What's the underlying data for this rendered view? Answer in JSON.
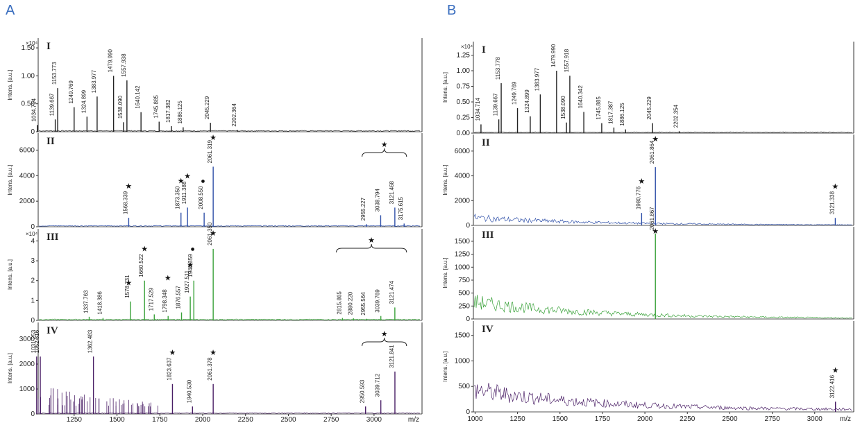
{
  "panel_labels": {
    "a": "A",
    "b": "B"
  },
  "colors": {
    "I": "#222222",
    "II": "#2e4fa8",
    "III": "#3aa23a",
    "IV": "#4a1f66",
    "letter": "#3a6ebf"
  },
  "chart_data": [
    {
      "panel": "A",
      "type": "line",
      "x_axis": {
        "ticks": [
          "1250",
          "1500",
          "1750",
          "2000",
          "2250",
          "2500",
          "2750",
          "3000"
        ],
        "unit_label": "m/z",
        "xlim": [
          1040,
          3280
        ]
      },
      "subplots": [
        {
          "label": "I",
          "ylabel": "Intens. [a.u.]",
          "multiplier": "×10⁴",
          "yticks": [
            "0",
            "0.50",
            "1.00",
            "1.50"
          ],
          "ylim": [
            0,
            1.6
          ],
          "color": "#222222",
          "peaks": [
            {
              "mz": 1034.714,
              "h": 0.12,
              "label": "1034.714"
            },
            {
              "mz": 1139.667,
              "h": 0.22,
              "label": "1139.667"
            },
            {
              "mz": 1153.773,
              "h": 0.78,
              "label": "1153.773"
            },
            {
              "mz": 1249.769,
              "h": 0.44,
              "label": "1249.769"
            },
            {
              "mz": 1324.899,
              "h": 0.27,
              "label": "1324.899"
            },
            {
              "mz": 1383.977,
              "h": 0.63,
              "label": "1383.977"
            },
            {
              "mz": 1479.99,
              "h": 1.0,
              "label": "1479.990"
            },
            {
              "mz": 1557.938,
              "h": 0.92,
              "label": "1557.938"
            },
            {
              "mz": 1538.09,
              "h": 0.17,
              "label": "1538.090"
            },
            {
              "mz": 1640.142,
              "h": 0.35,
              "label": "1640.142"
            },
            {
              "mz": 1745.885,
              "h": 0.18,
              "label": "1745.885"
            },
            {
              "mz": 1817.382,
              "h": 0.1,
              "label": "1817.382"
            },
            {
              "mz": 1886.125,
              "h": 0.08,
              "label": "1886.125"
            },
            {
              "mz": 2045.229,
              "h": 0.16,
              "label": "2045.229"
            },
            {
              "mz": 2202.364,
              "h": 0.03,
              "label": "2202.364"
            }
          ],
          "markers": []
        },
        {
          "label": "II",
          "ylabel": "Intens. [a.u.]",
          "multiplier": "",
          "yticks": [
            "0",
            "2000",
            "4000",
            "6000"
          ],
          "ylim": [
            0,
            7000
          ],
          "color": "#2e4fa8",
          "peaks": [
            {
              "mz": 1568.339,
              "h": 700,
              "label": "1568.339"
            },
            {
              "mz": 1873.35,
              "h": 1100,
              "label": "1873.350"
            },
            {
              "mz": 1911.388,
              "h": 1500,
              "label": "1911.388"
            },
            {
              "mz": 2008.55,
              "h": 1100,
              "label": "2008.550"
            },
            {
              "mz": 2061.319,
              "h": 4700,
              "label": "2061.319"
            },
            {
              "mz": 2955.227,
              "h": 200,
              "label": "2955.227"
            },
            {
              "mz": 3038.794,
              "h": 900,
              "label": "3038.794"
            },
            {
              "mz": 3121.468,
              "h": 1500,
              "label": "3121.468"
            },
            {
              "mz": 3175.615,
              "h": 250,
              "label": "3175.615"
            }
          ],
          "markers": [
            {
              "mz": 1568.339,
              "h": 700,
              "symbol": "★"
            },
            {
              "mz": 1873.35,
              "h": 1100,
              "symbol": "★"
            },
            {
              "mz": 1911.388,
              "h": 1500,
              "symbol": "★"
            },
            {
              "mz": 2008.55,
              "h": 1100,
              "symbol": "●"
            },
            {
              "mz": 2061.319,
              "h": 4700,
              "symbol": "★"
            }
          ],
          "bracket": {
            "from": 2930,
            "to": 3190,
            "symbol": "★"
          }
        },
        {
          "label": "III",
          "ylabel": "Intens. [a.u.]",
          "multiplier": "×10⁴",
          "yticks": [
            "0",
            "1",
            "2",
            "3",
            "4"
          ],
          "ylim": [
            0,
            4.4
          ],
          "color": "#3aa23a",
          "peaks": [
            {
              "mz": 1337.763,
              "h": 0.18,
              "label": "1337.763"
            },
            {
              "mz": 1418.386,
              "h": 0.12,
              "label": "1418.386"
            },
            {
              "mz": 1578.731,
              "h": 0.95,
              "label": "1578.731"
            },
            {
              "mz": 1660.522,
              "h": 2.0,
              "label": "1660.522"
            },
            {
              "mz": 1717.529,
              "h": 0.3,
              "label": "1717.529"
            },
            {
              "mz": 1798.348,
              "h": 0.22,
              "label": "1798.348"
            },
            {
              "mz": 1876.557,
              "h": 0.4,
              "label": "1876.557"
            },
            {
              "mz": 1927.511,
              "h": 1.2,
              "label": "1927.511"
            },
            {
              "mz": 1948.359,
              "h": 2.0,
              "label": "1948.359"
            },
            {
              "mz": 2061.35,
              "h": 3.6,
              "label": "2061.350"
            },
            {
              "mz": 2815.865,
              "h": 0.12,
              "label": "2815.865"
            },
            {
              "mz": 2880.22,
              "h": 0.1,
              "label": "2880.220"
            },
            {
              "mz": 2955.564,
              "h": 0.08,
              "label": "2955.564"
            },
            {
              "mz": 3039.769,
              "h": 0.22,
              "label": "3039.769"
            },
            {
              "mz": 3121.474,
              "h": 0.65,
              "label": "3121.474"
            }
          ],
          "markers": [
            {
              "mz": 1568,
              "h": 0.3,
              "symbol": "★"
            },
            {
              "mz": 1660.522,
              "h": 2.0,
              "symbol": "★"
            },
            {
              "mz": 1797,
              "h": 0.55,
              "symbol": "★"
            },
            {
              "mz": 1927.511,
              "h": 1.2,
              "symbol": "★"
            },
            {
              "mz": 1948.359,
              "h": 2.0,
              "symbol": "●"
            },
            {
              "mz": 2061.35,
              "h": 3.6,
              "symbol": "★"
            }
          ],
          "bracket": {
            "from": 2780,
            "to": 3190,
            "symbol": "★"
          }
        },
        {
          "label": "IV",
          "ylabel": "Intens. [a.u.]",
          "multiplier": "",
          "yticks": [
            "0",
            "1000",
            "2000",
            "3000"
          ],
          "ylim": [
            0,
            3500
          ],
          "color": "#4a1f66",
          "peaks": [
            {
              "mz": 1031.253,
              "h": 2300,
              "label": "1031.253"
            },
            {
              "mz": 1052.316,
              "h": 2300,
              "label": "1052.316"
            },
            {
              "mz": 1362.483,
              "h": 2300,
              "label": "1362.483"
            },
            {
              "mz": 1823.637,
              "h": 1200,
              "label": "1823.637"
            },
            {
              "mz": 1940.53,
              "h": 300,
              "label": "1940.530"
            },
            {
              "mz": 2061.378,
              "h": 1200,
              "label": "2061.378"
            },
            {
              "mz": 2950.593,
              "h": 300,
              "label": "2950.593"
            },
            {
              "mz": 3039.712,
              "h": 550,
              "label": "3039.712"
            },
            {
              "mz": 3121.841,
              "h": 1700,
              "label": "3121.841"
            }
          ],
          "markers": [
            {
              "mz": 1823.637,
              "h": 1200,
              "symbol": "★"
            },
            {
              "mz": 2061.378,
              "h": 1200,
              "symbol": "★"
            }
          ],
          "bracket": {
            "from": 2930,
            "to": 3190,
            "symbol": "★"
          }
        }
      ]
    },
    {
      "panel": "B",
      "type": "line",
      "x_axis": {
        "ticks": [
          "1000",
          "1250",
          "1500",
          "1750",
          "2000",
          "2250",
          "2500",
          "2750",
          "3000"
        ],
        "unit_label": "m/z",
        "xlim": [
          990,
          3230
        ]
      },
      "subplots": [
        {
          "label": "I",
          "ylabel": "Intens. [a.u.]",
          "multiplier": "×10⁴",
          "yticks": [
            "0.00",
            "0.25",
            "0.50",
            "0.75",
            "1.00",
            "1.25"
          ],
          "ylim": [
            0,
            1.4
          ],
          "color": "#222222",
          "peaks": [
            {
              "mz": 1034.714,
              "h": 0.14,
              "label": "1034.714"
            },
            {
              "mz": 1139.667,
              "h": 0.22,
              "label": "1139.667"
            },
            {
              "mz": 1153.778,
              "h": 0.8,
              "label": "1153.778"
            },
            {
              "mz": 1249.769,
              "h": 0.4,
              "label": "1249.769"
            },
            {
              "mz": 1324.899,
              "h": 0.27,
              "label": "1324.899"
            },
            {
              "mz": 1383.977,
              "h": 0.62,
              "label": "1383.977"
            },
            {
              "mz": 1479.99,
              "h": 1.0,
              "label": "1479.990"
            },
            {
              "mz": 1557.918,
              "h": 0.92,
              "label": "1557.918"
            },
            {
              "mz": 1538.09,
              "h": 0.17,
              "label": "1538.090"
            },
            {
              "mz": 1640.342,
              "h": 0.34,
              "label": "1640.342"
            },
            {
              "mz": 1745.885,
              "h": 0.16,
              "label": "1745.885"
            },
            {
              "mz": 1817.387,
              "h": 0.09,
              "label": "1817.387"
            },
            {
              "mz": 1886.125,
              "h": 0.06,
              "label": "1886.125"
            },
            {
              "mz": 2045.229,
              "h": 0.16,
              "label": "2045.229"
            },
            {
              "mz": 2202.354,
              "h": 0.03,
              "label": "2202.354"
            }
          ],
          "markers": []
        },
        {
          "label": "II",
          "ylabel": "Intens. [a.u.]",
          "multiplier": "",
          "yticks": [
            "0",
            "2000",
            "4000",
            "6000"
          ],
          "ylim": [
            0,
            7000
          ],
          "color": "#2e4fa8",
          "peaks": [
            {
              "mz": 1980.776,
              "h": 1000,
              "label": "1980.776"
            },
            {
              "mz": 2061.864,
              "h": 4700,
              "label": "2061.864"
            },
            {
              "mz": 3121.338,
              "h": 600,
              "label": "3121.338"
            }
          ],
          "markers": [
            {
              "mz": 1980.776,
              "h": 1000,
              "symbol": "★"
            },
            {
              "mz": 2061.864,
              "h": 4700,
              "symbol": "★"
            },
            {
              "mz": 3121.338,
              "h": 600,
              "symbol": "★"
            }
          ],
          "noise": {
            "start": 900,
            "end": 30
          }
        },
        {
          "label": "III",
          "ylabel": "Intens. [a.u.]",
          "multiplier": "",
          "yticks": [
            "0",
            "250",
            "500",
            "750",
            "1000",
            "1250",
            "1500"
          ],
          "ylim": [
            0,
            1700
          ],
          "color": "#3aa23a",
          "peaks": [
            {
              "mz": 2061.867,
              "h": 1650,
              "label": "2061.867"
            }
          ],
          "markers": [
            {
              "mz": 2061.867,
              "h": 1650,
              "symbol": "★"
            }
          ],
          "noise": {
            "start": 480,
            "end": 10
          }
        },
        {
          "label": "IV",
          "ylabel": "Intens. [a.u.]",
          "multiplier": "",
          "yticks": [
            "0",
            "500",
            "1000",
            "1500"
          ],
          "ylim": [
            0,
            1700
          ],
          "color": "#4a1f66",
          "peaks": [
            {
              "mz": 3122.416,
              "h": 200,
              "label": "3122.416"
            }
          ],
          "markers": [
            {
              "mz": 3122.416,
              "h": 200,
              "symbol": "★"
            }
          ],
          "noise": {
            "start": 600,
            "end": 50
          }
        }
      ]
    }
  ]
}
